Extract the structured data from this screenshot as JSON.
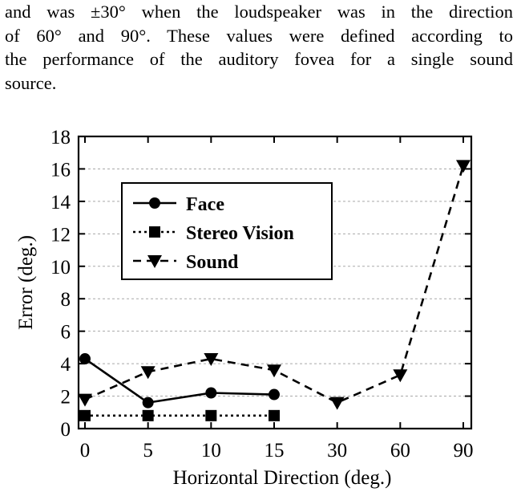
{
  "paragraph": {
    "lines": [
      "and was ±30° when the loudspeaker was in the direction",
      "of 60° and 90°.  These values were defined according to",
      "the performance of the auditory fovea for a single sound",
      "source."
    ]
  },
  "chart_data": {
    "type": "line",
    "title": "",
    "xlabel": "Horizontal Direction (deg.)",
    "ylabel": "Error (deg.)",
    "categories": [
      "0",
      "5",
      "10",
      "15",
      "30",
      "60",
      "90"
    ],
    "ylim": [
      0,
      18
    ],
    "yticks": [
      "0",
      "2",
      "4",
      "6",
      "8",
      "10",
      "12",
      "14",
      "16",
      "18"
    ],
    "grid": "horizontal dashed",
    "legend_position": "upper-left",
    "series": [
      {
        "name": "Face",
        "marker": "circle",
        "line": "solid",
        "values": [
          4.3,
          1.6,
          2.2,
          2.1,
          null,
          null,
          null
        ]
      },
      {
        "name": "Stereo Vision",
        "marker": "square",
        "line": "dotted",
        "values": [
          0.8,
          0.8,
          0.8,
          0.8,
          null,
          null,
          null
        ]
      },
      {
        "name": "Sound",
        "marker": "triangle-down",
        "line": "dashed",
        "values": [
          1.8,
          3.5,
          4.3,
          3.6,
          1.6,
          3.3,
          16.2
        ]
      }
    ]
  }
}
